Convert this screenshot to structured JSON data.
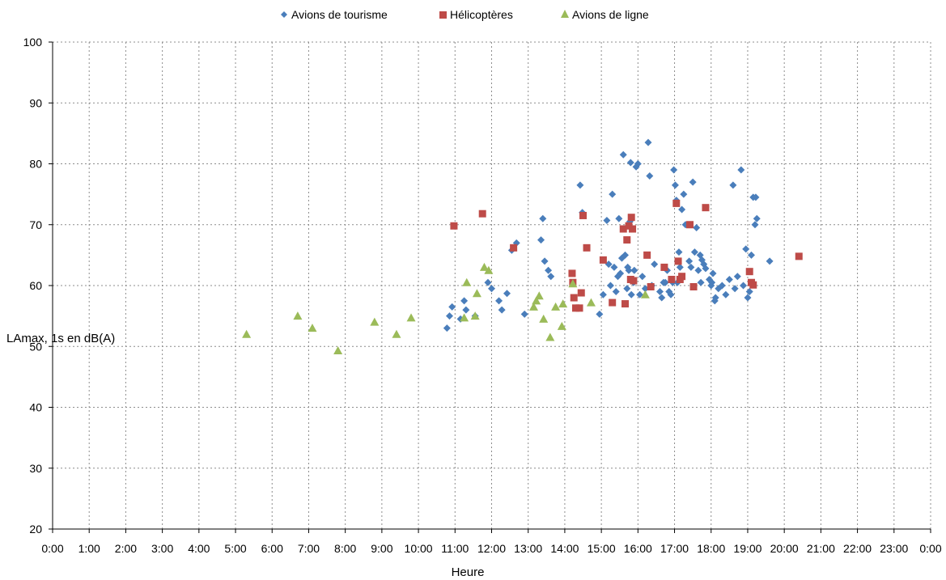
{
  "chart_data": {
    "type": "scatter",
    "title": "",
    "xlabel": "Heure",
    "ylabel": "LAmax, 1s en dB(A)",
    "xlim": [
      0,
      24
    ],
    "ylim": [
      20,
      100
    ],
    "x_ticks": [
      "0:00",
      "1:00",
      "2:00",
      "3:00",
      "4:00",
      "5:00",
      "6:00",
      "7:00",
      "8:00",
      "9:00",
      "10:00",
      "11:00",
      "12:00",
      "13:00",
      "14:00",
      "15:00",
      "16:00",
      "17:00",
      "18:00",
      "19:00",
      "20:00",
      "21:00",
      "22:00",
      "23:00",
      "0:00"
    ],
    "y_ticks": [
      20,
      30,
      40,
      50,
      60,
      70,
      80,
      90,
      100
    ],
    "grid": true,
    "legend_position": "top",
    "series": [
      {
        "name": "Avions de tourisme",
        "marker": "diamond",
        "color": "#4a7ebb",
        "x": [
          10.78,
          10.85,
          10.92,
          11.15,
          11.25,
          11.3,
          11.55,
          11.9,
          12.0,
          12.2,
          12.28,
          12.42,
          12.55,
          12.68,
          12.9,
          13.35,
          13.4,
          13.45,
          13.55,
          13.62,
          14.42,
          14.48,
          14.95,
          15.05,
          15.15,
          15.2,
          15.25,
          15.3,
          15.35,
          15.4,
          15.45,
          15.48,
          15.52,
          15.56,
          15.6,
          15.65,
          15.7,
          15.72,
          15.75,
          15.78,
          15.8,
          15.82,
          15.85,
          15.88,
          15.9,
          15.95,
          16.0,
          16.05,
          16.12,
          16.2,
          16.28,
          16.32,
          16.38,
          16.45,
          16.6,
          16.65,
          16.7,
          16.75,
          16.8,
          16.85,
          16.9,
          16.95,
          16.98,
          17.02,
          17.05,
          17.08,
          17.12,
          17.15,
          17.2,
          17.25,
          17.3,
          17.4,
          17.45,
          17.5,
          17.55,
          17.6,
          17.65,
          17.7,
          17.72,
          17.75,
          17.8,
          17.85,
          17.95,
          18.0,
          18.02,
          18.05,
          18.1,
          18.12,
          18.2,
          18.3,
          18.4,
          18.5,
          18.6,
          18.65,
          18.72,
          18.82,
          18.88,
          18.95,
          19.0,
          19.05,
          19.1,
          19.15,
          19.2,
          19.22,
          19.25,
          19.6
        ],
        "y": [
          53,
          55,
          56.5,
          54.5,
          57.5,
          56,
          55,
          60.5,
          59.5,
          57.5,
          56,
          58.7,
          65.8,
          67,
          55.3,
          67.5,
          71,
          64,
          62.5,
          61.5,
          76.5,
          72,
          55.3,
          58.5,
          70.7,
          63.5,
          60,
          75,
          63,
          59,
          61.5,
          71,
          62,
          64.5,
          81.5,
          65,
          59.5,
          63,
          62.5,
          70.5,
          80.2,
          58.5,
          61,
          60.5,
          62.5,
          79.5,
          80,
          58.5,
          61.5,
          59.5,
          83.5,
          78,
          60,
          63.5,
          59,
          58,
          60.5,
          60.5,
          62.5,
          59,
          58.5,
          60.5,
          79,
          76.5,
          74,
          60.5,
          65.5,
          63,
          72.5,
          75,
          70,
          64,
          63,
          77,
          65.5,
          69.5,
          62.5,
          65,
          60.5,
          64.2,
          63.5,
          62.8,
          61,
          60,
          60.5,
          62,
          57.5,
          58,
          59.5,
          60,
          58.5,
          61,
          76.5,
          59.5,
          61.5,
          79,
          60,
          66,
          58,
          59,
          65,
          74.5,
          70,
          74.5,
          71,
          64
        ]
      },
      {
        "name": "Hélicoptères",
        "marker": "square",
        "color": "#be4b48",
        "x": [
          10.97,
          11.75,
          12.6,
          14.2,
          14.22,
          14.25,
          14.3,
          14.4,
          14.45,
          14.5,
          14.6,
          15.05,
          15.3,
          15.6,
          15.65,
          15.7,
          15.75,
          15.8,
          15.82,
          15.85,
          15.88,
          16.25,
          16.35,
          16.72,
          16.92,
          17.05,
          17.1,
          17.15,
          17.2,
          17.42,
          17.52,
          17.85,
          19.05,
          19.1,
          19.15,
          20.4
        ],
        "y": [
          69.8,
          71.8,
          66.2,
          62,
          60.5,
          58,
          56.3,
          56.3,
          58.8,
          71.5,
          66.2,
          64.2,
          57.2,
          69.3,
          57,
          67.5,
          69.8,
          61,
          71.2,
          69.3,
          60.8,
          65,
          59.8,
          63,
          61,
          73.5,
          64,
          61,
          61.5,
          70,
          59.8,
          72.8,
          62.3,
          60.5,
          60.1,
          64.8
        ]
      },
      {
        "name": "Avions de ligne",
        "marker": "triangle",
        "color": "#9bbb59",
        "x": [
          5.3,
          6.7,
          7.1,
          7.8,
          8.8,
          9.4,
          9.8,
          11.25,
          11.32,
          11.55,
          11.6,
          11.8,
          11.92,
          13.15,
          13.22,
          13.3,
          13.42,
          13.6,
          13.75,
          13.92,
          13.95,
          14.22,
          14.72,
          16.2
        ],
        "y": [
          52,
          55,
          53,
          49.3,
          54,
          52,
          54.7,
          54.7,
          60.5,
          55,
          58.7,
          63,
          62.5,
          56.5,
          57.5,
          58.3,
          54.5,
          51.5,
          56.5,
          53.3,
          57,
          60.3,
          57.2,
          58.5
        ]
      }
    ]
  }
}
